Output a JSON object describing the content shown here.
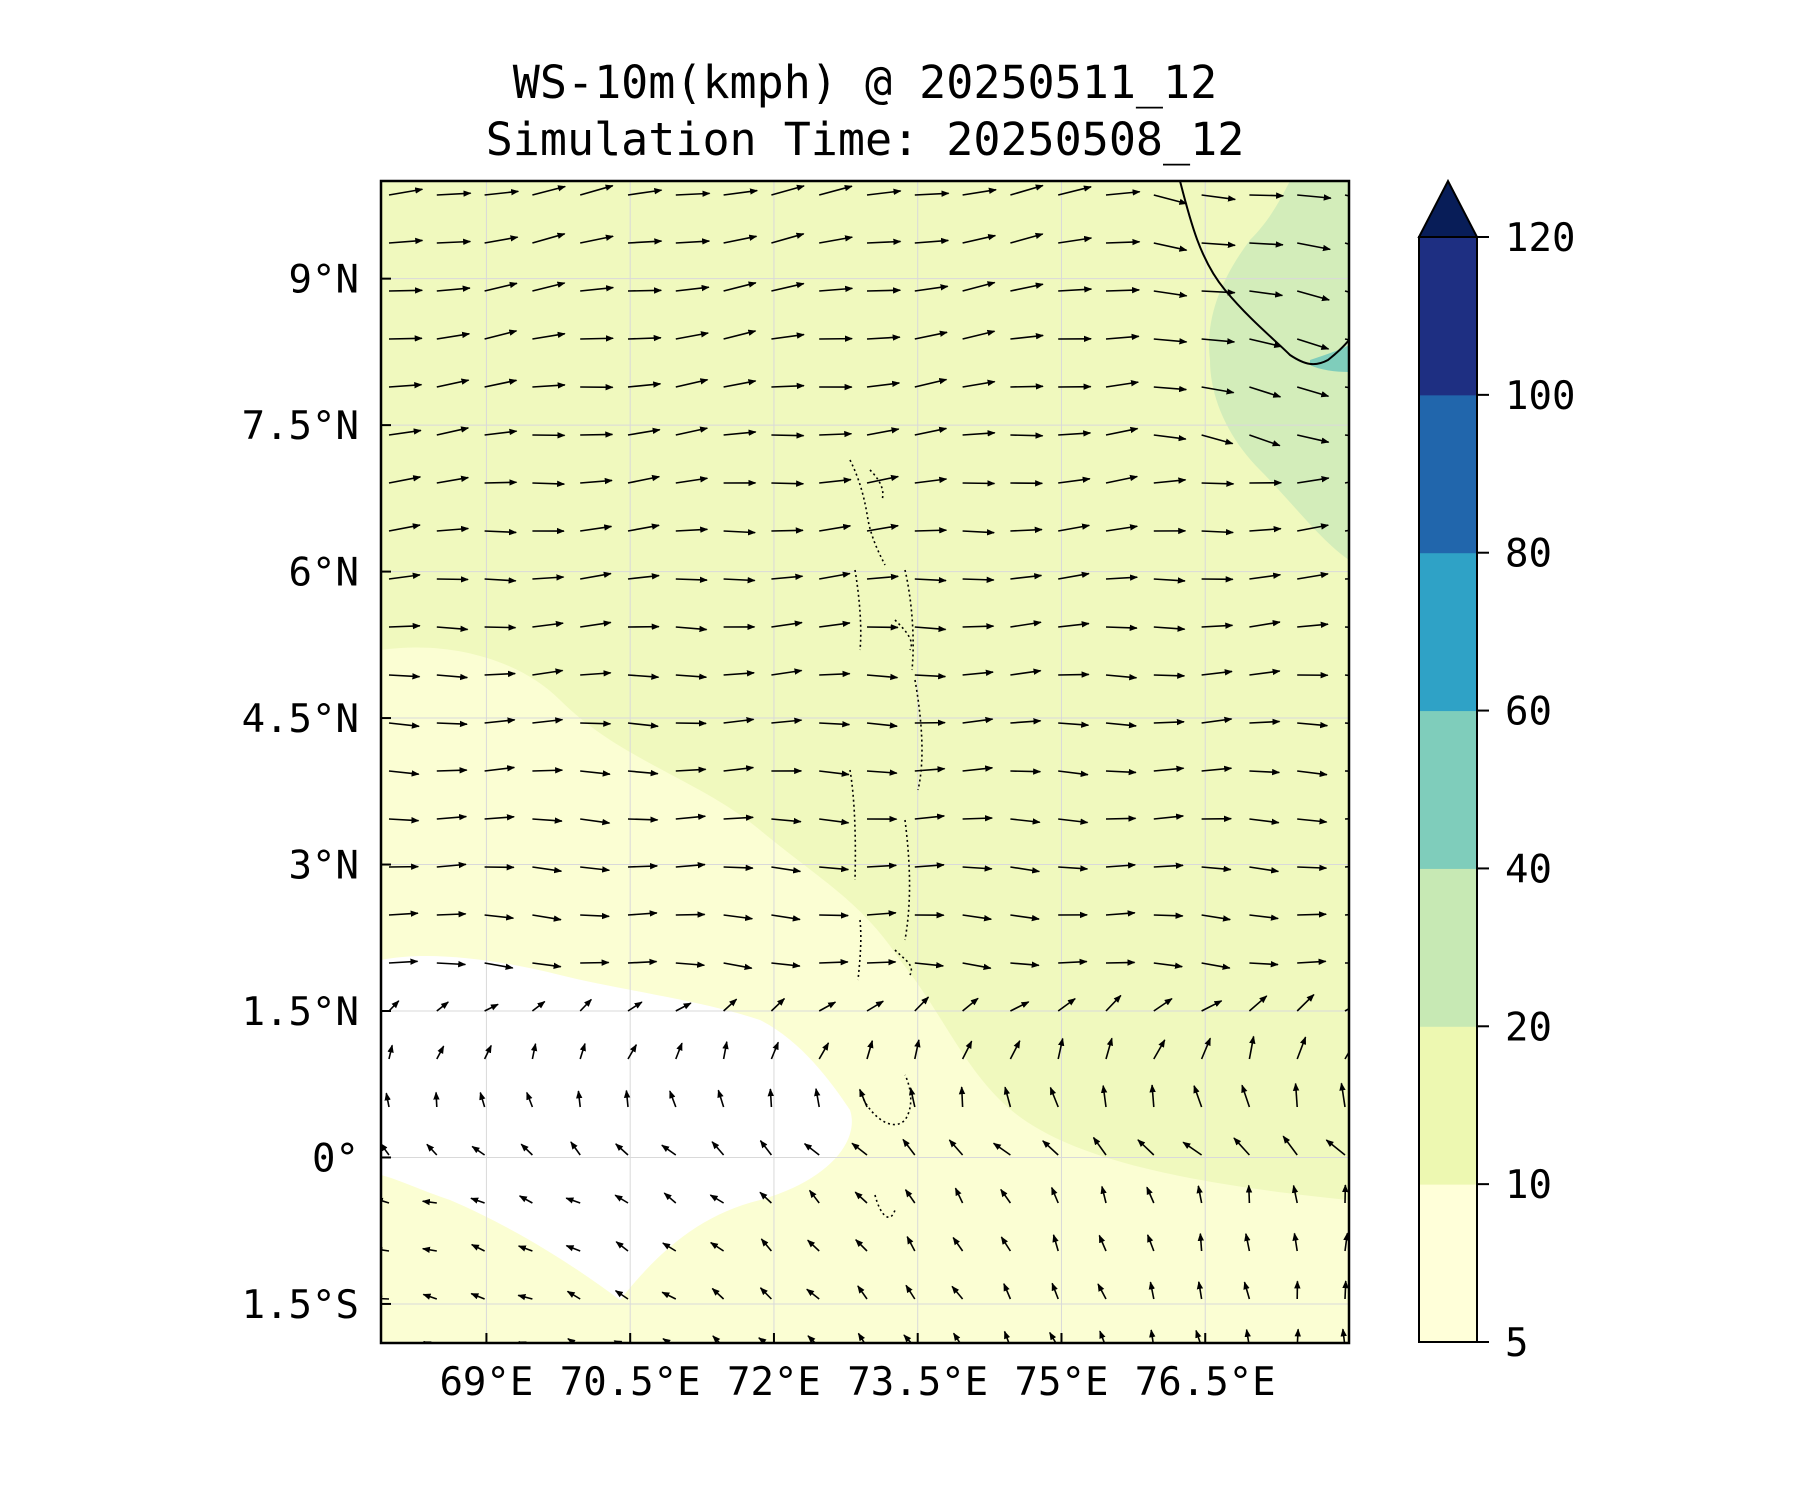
{
  "title_line1": "WS-10m(kmph) @ 20250511_12",
  "title_line2": "Simulation Time: 20250508_12",
  "map": {
    "lon_range": [
      67.9,
      78.0
    ],
    "lat_range": [
      -1.9,
      10.0
    ],
    "lon_ticks": [
      {
        "value": 69,
        "label": "69°E"
      },
      {
        "value": 70.5,
        "label": "70.5°E"
      },
      {
        "value": 72,
        "label": "72°E"
      },
      {
        "value": 73.5,
        "label": "73.5°E"
      },
      {
        "value": 75,
        "label": "75°E"
      },
      {
        "value": 76.5,
        "label": "76.5°E"
      }
    ],
    "lat_ticks": [
      {
        "value": 9,
        "label": "9°N"
      },
      {
        "value": 7.5,
        "label": "7.5°N"
      },
      {
        "value": 6,
        "label": "6°N"
      },
      {
        "value": 4.5,
        "label": "4.5°N"
      },
      {
        "value": 3,
        "label": "3°N"
      },
      {
        "value": 1.5,
        "label": "1.5°N"
      },
      {
        "value": 0,
        "label": "0°"
      },
      {
        "value": -1.5,
        "label": "1.5°S"
      }
    ],
    "wind_vectors": "quiver field of 10 m wind directions: westerly/west-southwesterly north of ~1.5°N, turning northwesterly to southerly south of the equator"
  },
  "colorbar": {
    "levels": [
      5,
      10,
      20,
      40,
      60,
      80,
      100,
      120
    ],
    "labels": [
      "5",
      "10",
      "20",
      "40",
      "60",
      "80",
      "100",
      "120"
    ],
    "colors": [
      "#ffffd9",
      "#edf8b1",
      "#c7e9b4",
      "#7fcdbb",
      "#2fa2c6",
      "#2166ac",
      "#1e2f82"
    ],
    "extend_color": "#081d58",
    "extend": "max"
  },
  "colors": {
    "below_min": "#ffffff",
    "level_5_10": "#fbfed3",
    "level_10_20": "#f0f9be",
    "level_20_40": "#d3edba",
    "coast": "#000000"
  }
}
